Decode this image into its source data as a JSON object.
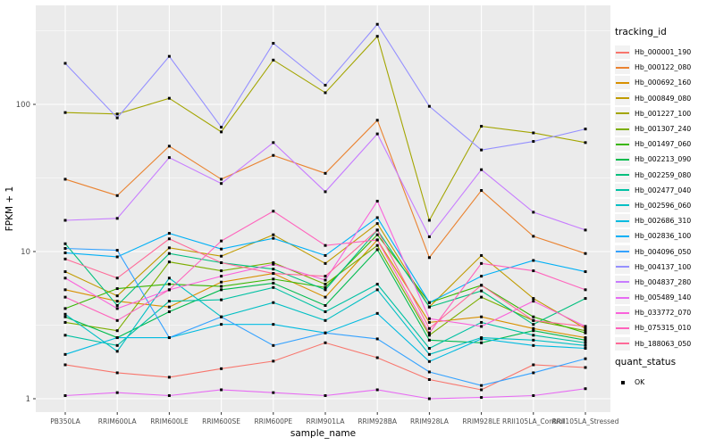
{
  "chart_data": {
    "type": "line",
    "title": "",
    "xlabel": "sample_name",
    "ylabel": "FPKM + 1",
    "y_scale": "log10",
    "y_ticks": [
      1,
      10,
      100
    ],
    "y_minor_ticks": [
      3.162,
      31.62,
      316.2
    ],
    "ylim_note": "log axis, panel spans approx 0.8 to 470",
    "grid": "major white on grey panel, minor white thin",
    "legend_position": "right",
    "panel_color": "#EBEBEB",
    "point_marker": "small black square",
    "categories": [
      "PB350LA",
      "RRIM600LA",
      "RRIM600LE",
      "RRIM600SE",
      "RRIM600PE",
      "RRIM901LA",
      "RRIM928BA",
      "RRIM928LA",
      "RRIM928LE",
      "RRII105LA_Control",
      "RRII105LA_Stressed"
    ],
    "legend_title": "tracking_id",
    "legend2_title": "quant_status",
    "legend2_items": [
      "OK"
    ],
    "series": [
      {
        "name": "Hb_000001_190",
        "color": "#F8766D",
        "values": [
          1.7,
          1.5,
          1.4,
          1.6,
          1.8,
          2.4,
          1.9,
          1.35,
          1.15,
          1.7,
          1.63
        ]
      },
      {
        "name": "Hb_000122_080",
        "color": "#EA8331",
        "values": [
          31,
          24,
          52,
          31,
          45,
          34,
          78,
          9.1,
          26,
          12.7,
          9.7
        ]
      },
      {
        "name": "Hb_000692_160",
        "color": "#D89000",
        "values": [
          5.5,
          4.6,
          4.2,
          6.2,
          7.1,
          4.9,
          12,
          3.3,
          3.6,
          3.0,
          2.6
        ]
      },
      {
        "name": "Hb_000849_080",
        "color": "#C09B00",
        "values": [
          7.3,
          5.0,
          10.6,
          9.3,
          13,
          8.3,
          15.5,
          4.2,
          9.4,
          4.8,
          3.0
        ]
      },
      {
        "name": "Hb_001227_100",
        "color": "#A3A500",
        "values": [
          88,
          86,
          110,
          65,
          200,
          120,
          290,
          16.3,
          71,
          64,
          55
        ]
      },
      {
        "name": "Hb_001307_240",
        "color": "#7CAE00",
        "values": [
          3.3,
          2.9,
          8.5,
          7.4,
          8.4,
          6.0,
          11,
          2.7,
          4.9,
          3.4,
          2.9
        ]
      },
      {
        "name": "Hb_001497_060",
        "color": "#39B600",
        "values": [
          4.1,
          5.6,
          6.0,
          5.8,
          6.5,
          5.7,
          13,
          4.5,
          5.9,
          3.6,
          2.8
        ]
      },
      {
        "name": "Hb_002213_090",
        "color": "#00BB4E",
        "values": [
          3.6,
          2.6,
          3.9,
          5.5,
          6.1,
          4.3,
          10.3,
          2.5,
          2.4,
          2.9,
          2.5
        ]
      },
      {
        "name": "Hb_002259_080",
        "color": "#00BF7D",
        "values": [
          11.3,
          4.3,
          9.7,
          8.4,
          7.6,
          5.5,
          14,
          4.2,
          5.4,
          3.2,
          4.8
        ]
      },
      {
        "name": "Hb_002477_040",
        "color": "#00C1A3",
        "values": [
          2.7,
          2.3,
          4.6,
          4.7,
          5.7,
          3.9,
          6.0,
          2.2,
          3.3,
          2.7,
          2.4
        ]
      },
      {
        "name": "Hb_002596_060",
        "color": "#00BFC4",
        "values": [
          3.75,
          2.1,
          6.6,
          3.6,
          4.5,
          3.4,
          5.5,
          2.0,
          2.6,
          2.5,
          2.3
        ]
      },
      {
        "name": "Hb_002686_310",
        "color": "#00BAE0",
        "values": [
          2.0,
          2.6,
          2.6,
          3.2,
          3.2,
          2.8,
          3.8,
          1.79,
          2.55,
          2.3,
          2.2
        ]
      },
      {
        "name": "Hb_002836_100",
        "color": "#00B0F6",
        "values": [
          9.8,
          9.2,
          13.3,
          10.4,
          12.3,
          9.4,
          17,
          4.5,
          6.8,
          8.7,
          7.3
        ]
      },
      {
        "name": "Hb_004096_050",
        "color": "#35A2FF",
        "values": [
          10.5,
          10.2,
          2.6,
          3.6,
          2.3,
          2.8,
          2.55,
          1.52,
          1.23,
          1.5,
          1.87
        ]
      },
      {
        "name": "Hb_004137_100",
        "color": "#9590FF",
        "values": [
          190,
          81,
          212,
          70,
          260,
          135,
          350,
          97,
          49,
          56,
          68
        ]
      },
      {
        "name": "Hb_004837_280",
        "color": "#C77CFF",
        "values": [
          16.3,
          16.8,
          43.5,
          29,
          55,
          25.5,
          63,
          12.6,
          36,
          18.5,
          14
        ]
      },
      {
        "name": "Hb_005489_140",
        "color": "#E76BF3",
        "values": [
          1.05,
          1.1,
          1.05,
          1.15,
          1.1,
          1.05,
          1.15,
          1.0,
          1.02,
          1.05,
          1.17
        ]
      },
      {
        "name": "Hb_033772_070",
        "color": "#FA62DB",
        "values": [
          6.6,
          4.1,
          5.5,
          6.8,
          8.2,
          6.4,
          22,
          3.5,
          3.1,
          4.6,
          3.1
        ]
      },
      {
        "name": "Hb_075315_010",
        "color": "#FF62BC",
        "values": [
          4.9,
          3.4,
          5.5,
          11.8,
          18.8,
          11,
          12,
          2.8,
          8.3,
          7.4,
          5.5
        ]
      },
      {
        "name": "Hb_188063_050",
        "color": "#FF6A98",
        "values": [
          8.9,
          6.6,
          12.2,
          8.4,
          7.1,
          6.8,
          14,
          3.0,
          5.9,
          3.4,
          3.1
        ]
      }
    ]
  }
}
